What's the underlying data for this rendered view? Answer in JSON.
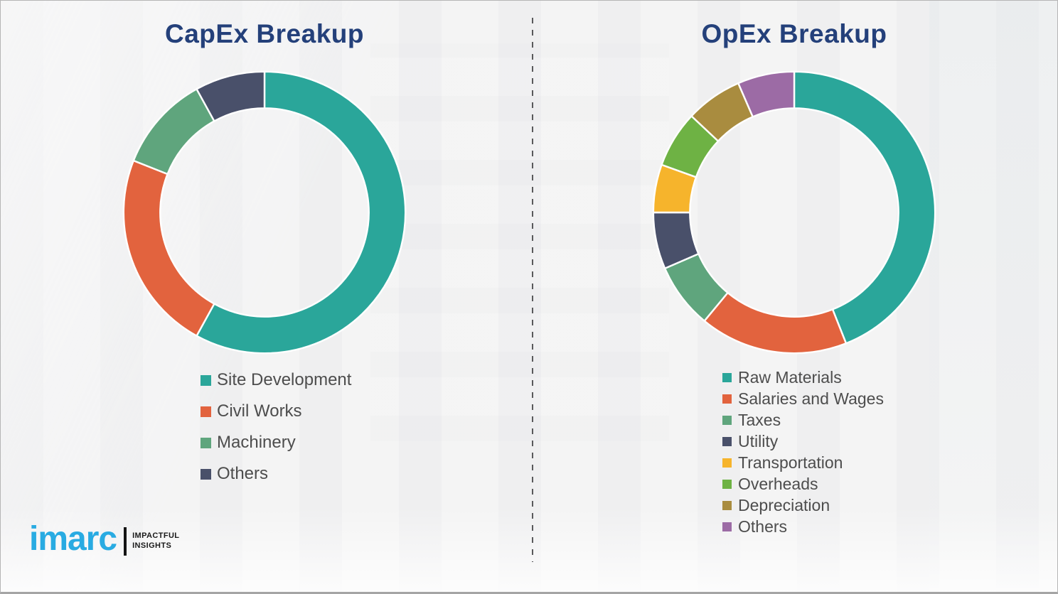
{
  "page": {
    "background_color": "#F2F2F3",
    "border_color": "#B5B5B5",
    "divider_color": "#555555",
    "title_color": "#24407A",
    "legend_text_color": "#4D4D4D"
  },
  "chart_data": [
    {
      "type": "pie",
      "style": "donut",
      "title": "CapEx Breakup",
      "labels": [
        "Site Development",
        "Civil Works",
        "Machinery",
        "Others"
      ],
      "values": [
        58,
        23,
        11,
        8
      ],
      "colors": [
        "#2AA69A",
        "#E2633E",
        "#5FA57D",
        "#49506A"
      ],
      "start_angle_deg": 0,
      "direction": "clockwise",
      "legend_position": "below-left"
    },
    {
      "type": "pie",
      "style": "donut",
      "title": "OpEx Breakup",
      "labels": [
        "Raw Materials",
        "Salaries and Wages",
        "Taxes",
        "Utility",
        "Transportation",
        "Overheads",
        "Depreciation",
        "Others"
      ],
      "values": [
        44,
        17,
        7.5,
        6.5,
        5.5,
        6.5,
        6.5,
        6.5
      ],
      "colors": [
        "#2AA69A",
        "#E2633E",
        "#5FA57D",
        "#49506A",
        "#F6B42C",
        "#6EB244",
        "#A98C3F",
        "#9C6BA5"
      ],
      "start_angle_deg": 0,
      "direction": "clockwise",
      "legend_position": "below-left"
    }
  ],
  "logo": {
    "wordmark": "imarc",
    "tagline_line1": "IMPACTFUL",
    "tagline_line2": "INSIGHTS",
    "wordmark_color": "#29ABE2",
    "tagline_color": "#1A1A1A"
  }
}
